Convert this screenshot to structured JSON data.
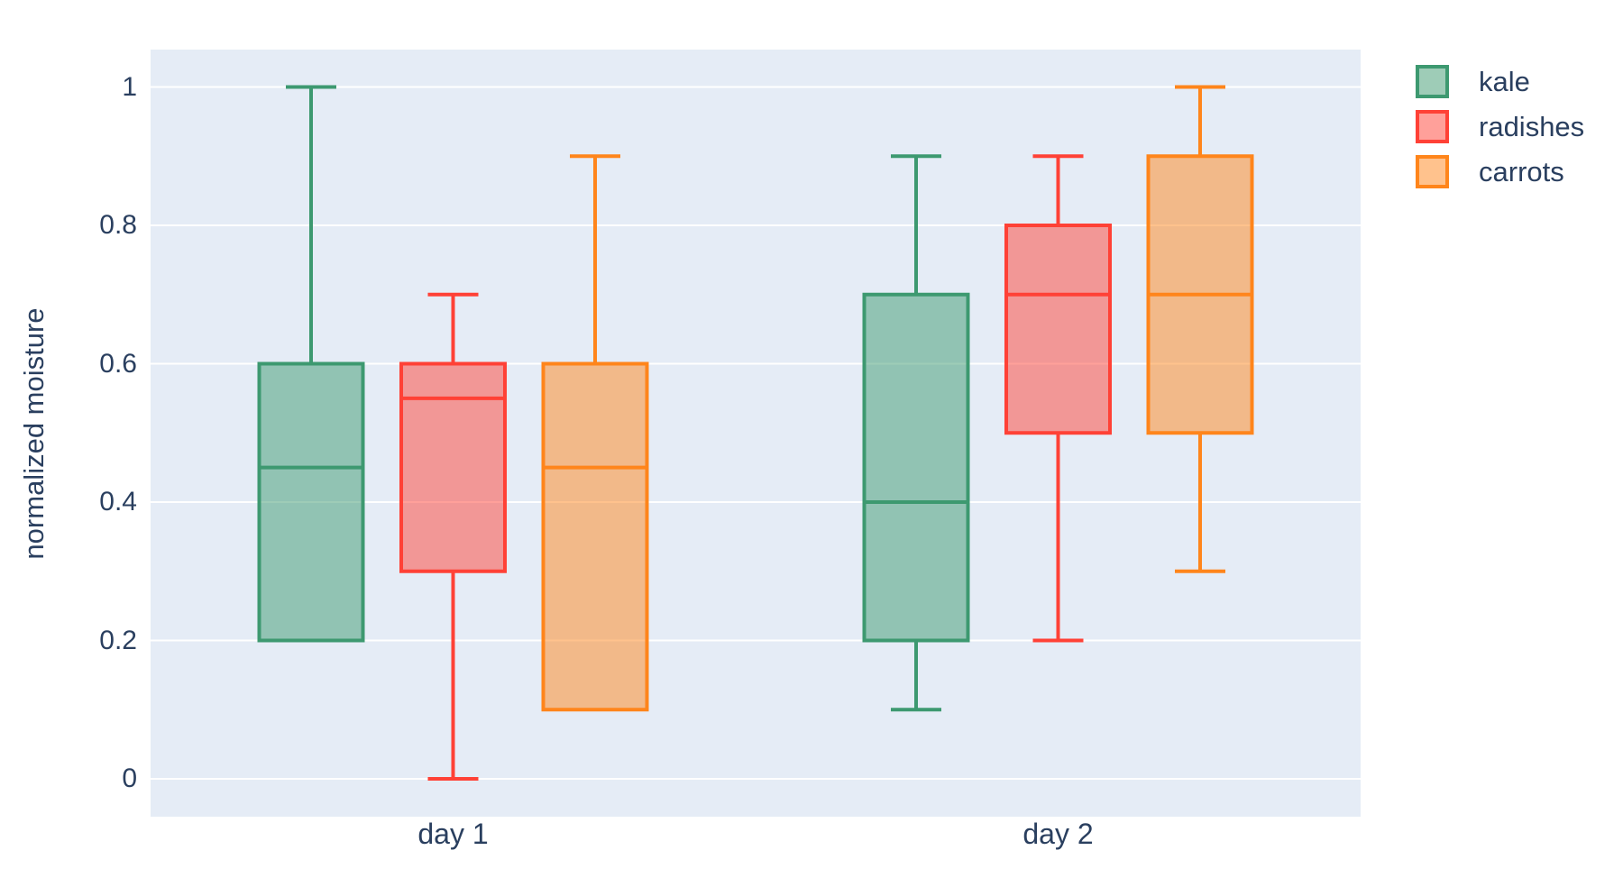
{
  "colors": {
    "page_bg": "#FFFFFF",
    "plot_bg": "#E5ECF6",
    "grid": "#FFFFFF",
    "text": "#2a3f5f",
    "kale": "#3D9970",
    "radishes": "#FF4136",
    "carrots": "#FF851B"
  },
  "chart_data": {
    "type": "box",
    "title": "",
    "xlabel": "",
    "ylabel": "normalized moisture",
    "boxmode": "group",
    "grid": true,
    "legend_position": "top-right",
    "categories": [
      "day 1",
      "day 2"
    ],
    "yticks": [
      "1",
      "0.8",
      "0.6",
      "0.4",
      "0.2",
      "0"
    ],
    "ytick_values": [
      1,
      0.8,
      0.6,
      0.4,
      0.2,
      0
    ],
    "ylim": [
      -0.04,
      1.055
    ],
    "series": [
      {
        "name": "kale",
        "color": "#3D9970",
        "boxes": [
          {
            "category": "day 1",
            "min": 0.2,
            "q1": 0.2,
            "median": 0.45,
            "q3": 0.6,
            "max": 1.0
          },
          {
            "category": "day 2",
            "min": 0.1,
            "q1": 0.2,
            "median": 0.4,
            "q3": 0.7,
            "max": 0.9
          }
        ]
      },
      {
        "name": "radishes",
        "color": "#FF4136",
        "boxes": [
          {
            "category": "day 1",
            "min": 0.0,
            "q1": 0.3,
            "median": 0.55,
            "q3": 0.6,
            "max": 0.7
          },
          {
            "category": "day 2",
            "min": 0.2,
            "q1": 0.5,
            "median": 0.7,
            "q3": 0.8,
            "max": 0.9
          }
        ]
      },
      {
        "name": "carrots",
        "color": "#FF851B",
        "boxes": [
          {
            "category": "day 1",
            "min": 0.1,
            "q1": 0.1,
            "median": 0.45,
            "q3": 0.6,
            "max": 0.9
          },
          {
            "category": "day 2",
            "min": 0.3,
            "q1": 0.5,
            "median": 0.7,
            "q3": 0.9,
            "max": 1.0
          }
        ]
      }
    ]
  }
}
